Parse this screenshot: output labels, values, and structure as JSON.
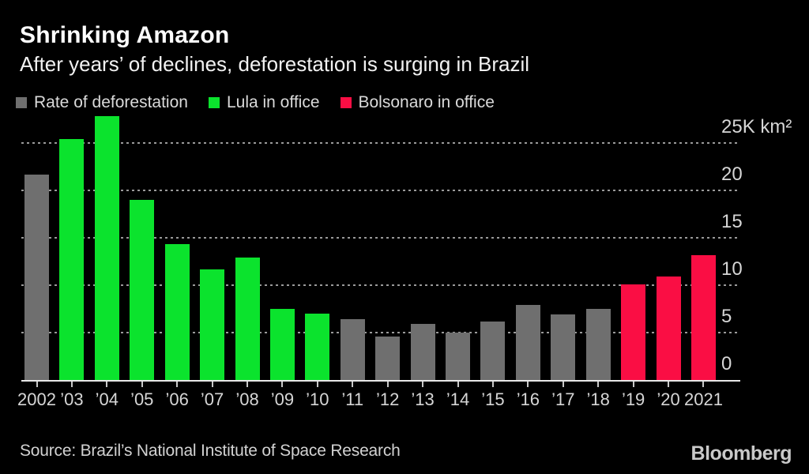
{
  "header": {
    "title": "Shrinking Amazon",
    "subtitle": "After years’ of declines, deforestation is surging in Brazil"
  },
  "legend": {
    "items": [
      {
        "key": "deforestation",
        "label": "Rate of deforestation",
        "color": "#6f6f6f"
      },
      {
        "key": "lula",
        "label": "Lula in office",
        "color": "#0be32d"
      },
      {
        "key": "bolsonaro",
        "label": "Bolsonaro in office",
        "color": "#fa0e44"
      }
    ]
  },
  "chart_data": {
    "type": "bar",
    "title": "Shrinking Amazon",
    "subtitle": "After years’ of declines, deforestation is surging in Brazil",
    "xlabel": "",
    "ylabel": "K km²",
    "ylim": [
      0,
      25
    ],
    "grid": "dashed-horizontal",
    "legend_position": "top-left",
    "categories": [
      "2002",
      "’03",
      "’04",
      "’05",
      "’06",
      "’07",
      "’08",
      "’09",
      "’10",
      "’11",
      "’12",
      "’13",
      "’14",
      "’15",
      "’16",
      "’17",
      "’18",
      "’19",
      "’20",
      "2021"
    ],
    "values": [
      21.7,
      25.4,
      27.8,
      19.0,
      14.3,
      11.7,
      12.9,
      7.5,
      7.0,
      6.4,
      4.6,
      5.9,
      5.0,
      6.2,
      7.9,
      6.9,
      7.5,
      10.1,
      10.9,
      13.2
    ],
    "period_keys": [
      "deforestation",
      "lula",
      "lula",
      "lula",
      "lula",
      "lula",
      "lula",
      "lula",
      "lula",
      "deforestation",
      "deforestation",
      "deforestation",
      "deforestation",
      "deforestation",
      "deforestation",
      "deforestation",
      "deforestation",
      "bolsonaro",
      "bolsonaro",
      "bolsonaro"
    ],
    "period_colors": {
      "deforestation": "#6f6f6f",
      "lula": "#0be32d",
      "bolsonaro": "#fa0e44"
    },
    "y_ticks": [
      {
        "value": 25,
        "label": "25K km²"
      },
      {
        "value": 20,
        "label": "20"
      },
      {
        "value": 15,
        "label": "15"
      },
      {
        "value": 10,
        "label": "10"
      },
      {
        "value": 5,
        "label": "5"
      },
      {
        "value": 0,
        "label": "0"
      }
    ]
  },
  "footer": {
    "source": "Source: Brazil’s National Institute of Space Research",
    "brand": "Bloomberg"
  }
}
